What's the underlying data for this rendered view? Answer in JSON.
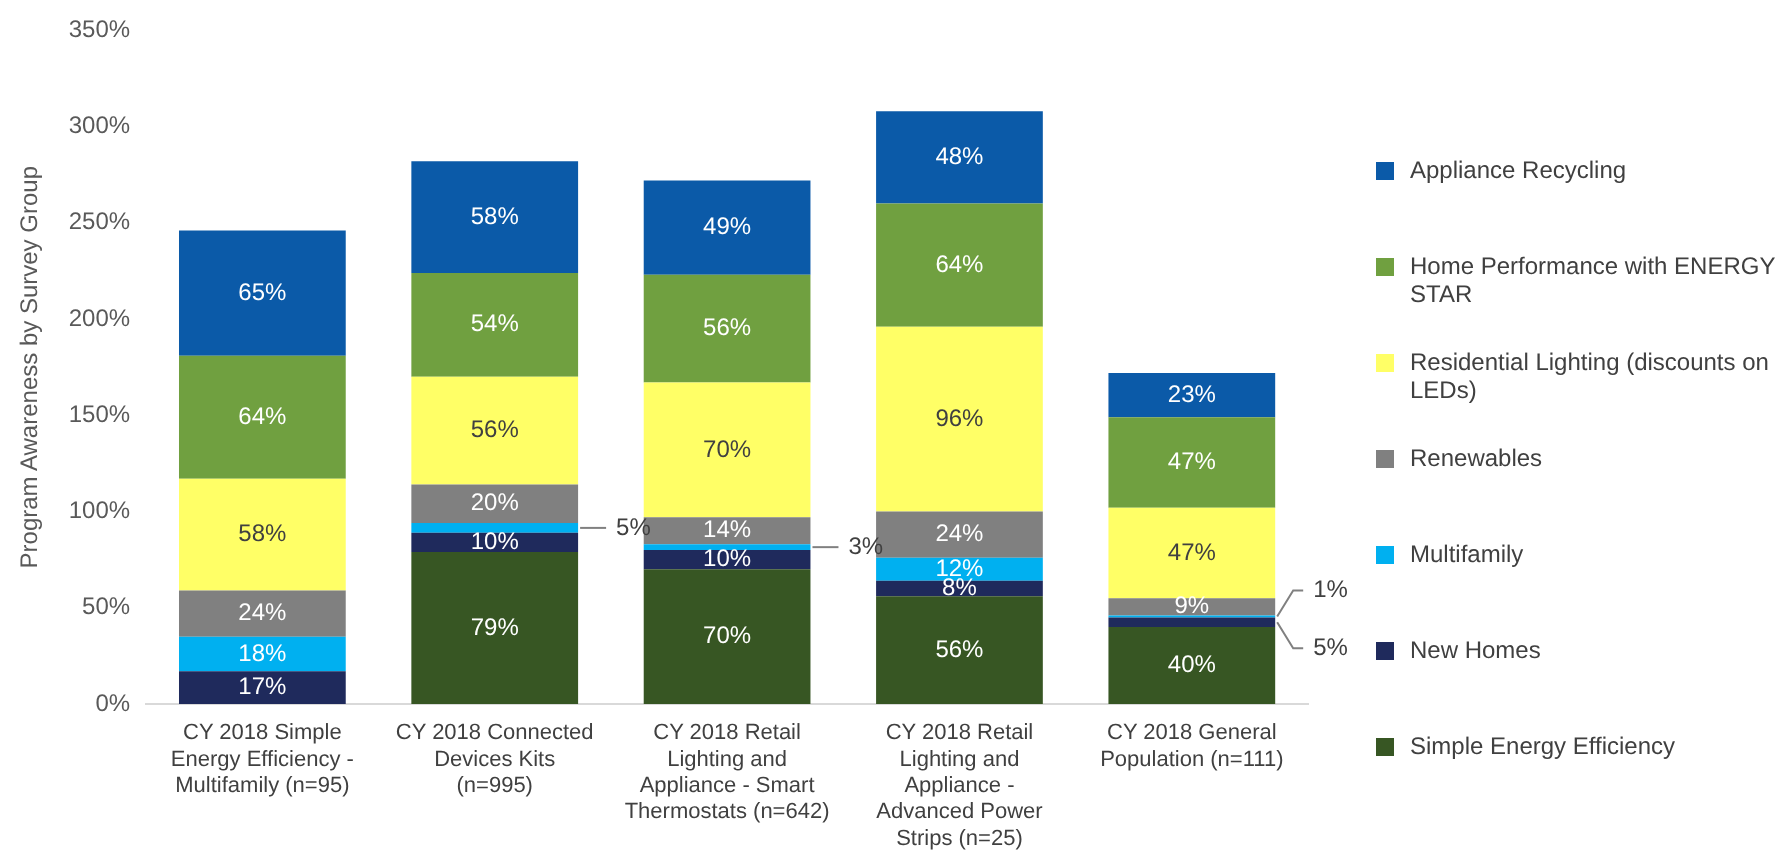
{
  "chart_data": {
    "type": "bar",
    "stacked": true,
    "ylabel": "Program Awareness by Survey Group",
    "categories": [
      "CY 2018 Simple Energy Efficiency - Multifamily (n=95)",
      "CY 2018 Connected Devices Kits (n=995)",
      "CY 2018 Retail Lighting and Appliance - Smart Thermostats (n=642)",
      "CY 2018 Retail Lighting and Appliance - Advanced Power Strips (n=25)",
      "CY 2018 General Population (n=111)"
    ],
    "ylim": [
      0,
      350
    ],
    "yticks": [
      {
        "value": 0,
        "label": "0%"
      },
      {
        "value": 50,
        "label": "50%"
      },
      {
        "value": 100,
        "label": "100%"
      },
      {
        "value": 150,
        "label": "150%"
      },
      {
        "value": 200,
        "label": "200%"
      },
      {
        "value": 250,
        "label": "250%"
      },
      {
        "value": 300,
        "label": "300%"
      },
      {
        "value": 350,
        "label": "350%"
      }
    ],
    "grid": false,
    "legend": "right",
    "series": [
      {
        "name": "Simple Energy Efficiency",
        "color": "#375623",
        "values": [
          null,
          79,
          70,
          56,
          40
        ],
        "value_labels": [
          null,
          "79%",
          "70%",
          "56%",
          "40%"
        ]
      },
      {
        "name": "New Homes",
        "color": "#1f2a5c",
        "values": [
          17,
          10,
          10,
          8,
          5
        ],
        "value_labels": [
          "17%",
          "10%",
          "10%",
          "8%",
          "5%"
        ]
      },
      {
        "name": "Multifamily",
        "color": "#00b0f0",
        "values": [
          18,
          5,
          3,
          12,
          1
        ],
        "value_labels": [
          "18%",
          "5%",
          "3%",
          "12%",
          "1%"
        ]
      },
      {
        "name": "Renewables",
        "color": "#808080",
        "values": [
          24,
          20,
          14,
          24,
          9
        ],
        "value_labels": [
          "24%",
          "20%",
          "14%",
          "24%",
          "9%"
        ]
      },
      {
        "name": "Residential Lighting (discounts on LEDs)",
        "color": "#ffff66",
        "values": [
          58,
          56,
          70,
          96,
          47
        ],
        "value_labels": [
          "58%",
          "56%",
          "70%",
          "96%",
          "47%"
        ]
      },
      {
        "name": "Home Performance with ENERGY STAR",
        "color": "#70a040",
        "values": [
          64,
          54,
          56,
          64,
          47
        ],
        "value_labels": [
          "64%",
          "54%",
          "56%",
          "64%",
          "47%"
        ]
      },
      {
        "name": "Appliance Recycling",
        "color": "#0b5aa8",
        "values": [
          65,
          58,
          49,
          48,
          23
        ],
        "value_labels": [
          "65%",
          "58%",
          "49%",
          "48%",
          "23%"
        ]
      }
    ]
  }
}
